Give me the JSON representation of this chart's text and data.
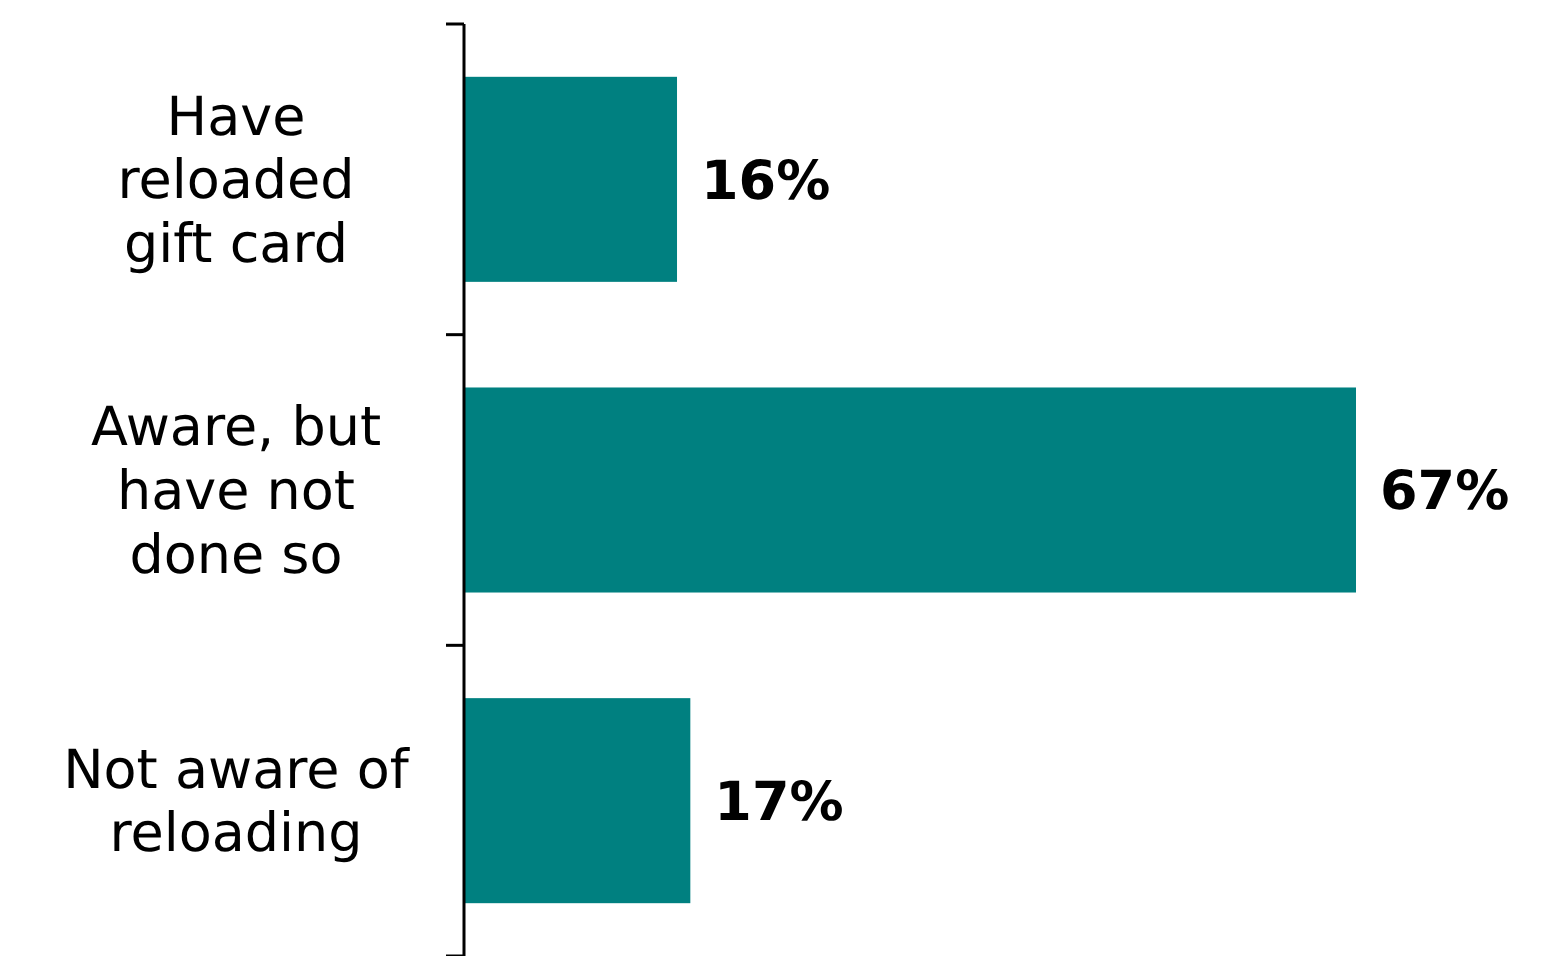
{
  "chart_data": {
    "type": "bar",
    "orientation": "horizontal",
    "categories": [
      "Have reloaded gift card",
      "Aware, but have not done so",
      "Not aware of reloading"
    ],
    "values": [
      16,
      67,
      17
    ],
    "color": "#008080",
    "value_labels": [
      "16%",
      "67%",
      "17%"
    ]
  }
}
